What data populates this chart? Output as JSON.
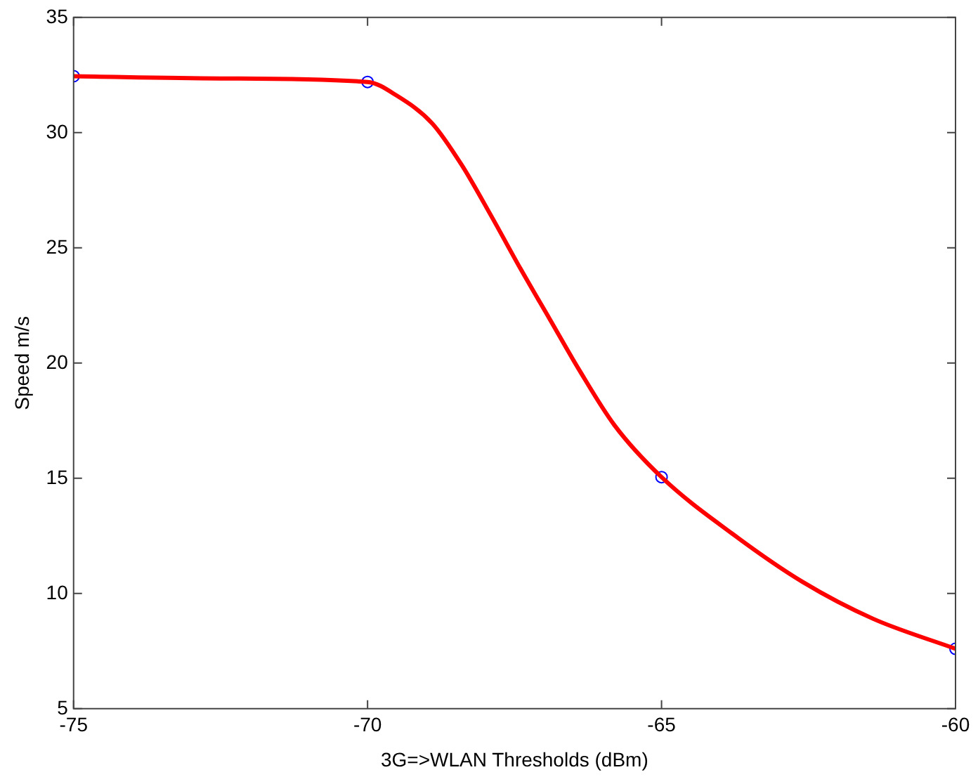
{
  "chart_data": {
    "type": "line",
    "xlabel": "3G=>WLAN Thresholds (dBm)",
    "ylabel": "Speed m/s",
    "xlim": [
      -75,
      -60
    ],
    "xticks": [
      -75,
      -70,
      -65,
      -60
    ],
    "ylim": [
      5,
      35
    ],
    "yticks": [
      5,
      10,
      15,
      20,
      25,
      30,
      35
    ],
    "grid": false,
    "legend": false,
    "series": [
      {
        "type": "line",
        "color": "#ff0000",
        "marker": "none",
        "x": [
          -75,
          -72.5,
          -70,
          -69.5,
          -68.9,
          -68.4,
          -67.9,
          -67.4,
          -66.9,
          -66.4,
          -65.8,
          -65,
          -63.8,
          -62.6,
          -61.4,
          -60
        ],
        "values": [
          32.45,
          32.35,
          32.2,
          31.6,
          30.4,
          28.6,
          26.4,
          24.1,
          21.9,
          19.7,
          17.3,
          15.05,
          12.6,
          10.5,
          8.9,
          7.6
        ]
      },
      {
        "type": "scatter",
        "color": "#0000ff",
        "marker": "circle",
        "x": [
          -75,
          -70,
          -65,
          -60
        ],
        "values": [
          32.45,
          32.2,
          15.05,
          7.6
        ]
      }
    ]
  }
}
